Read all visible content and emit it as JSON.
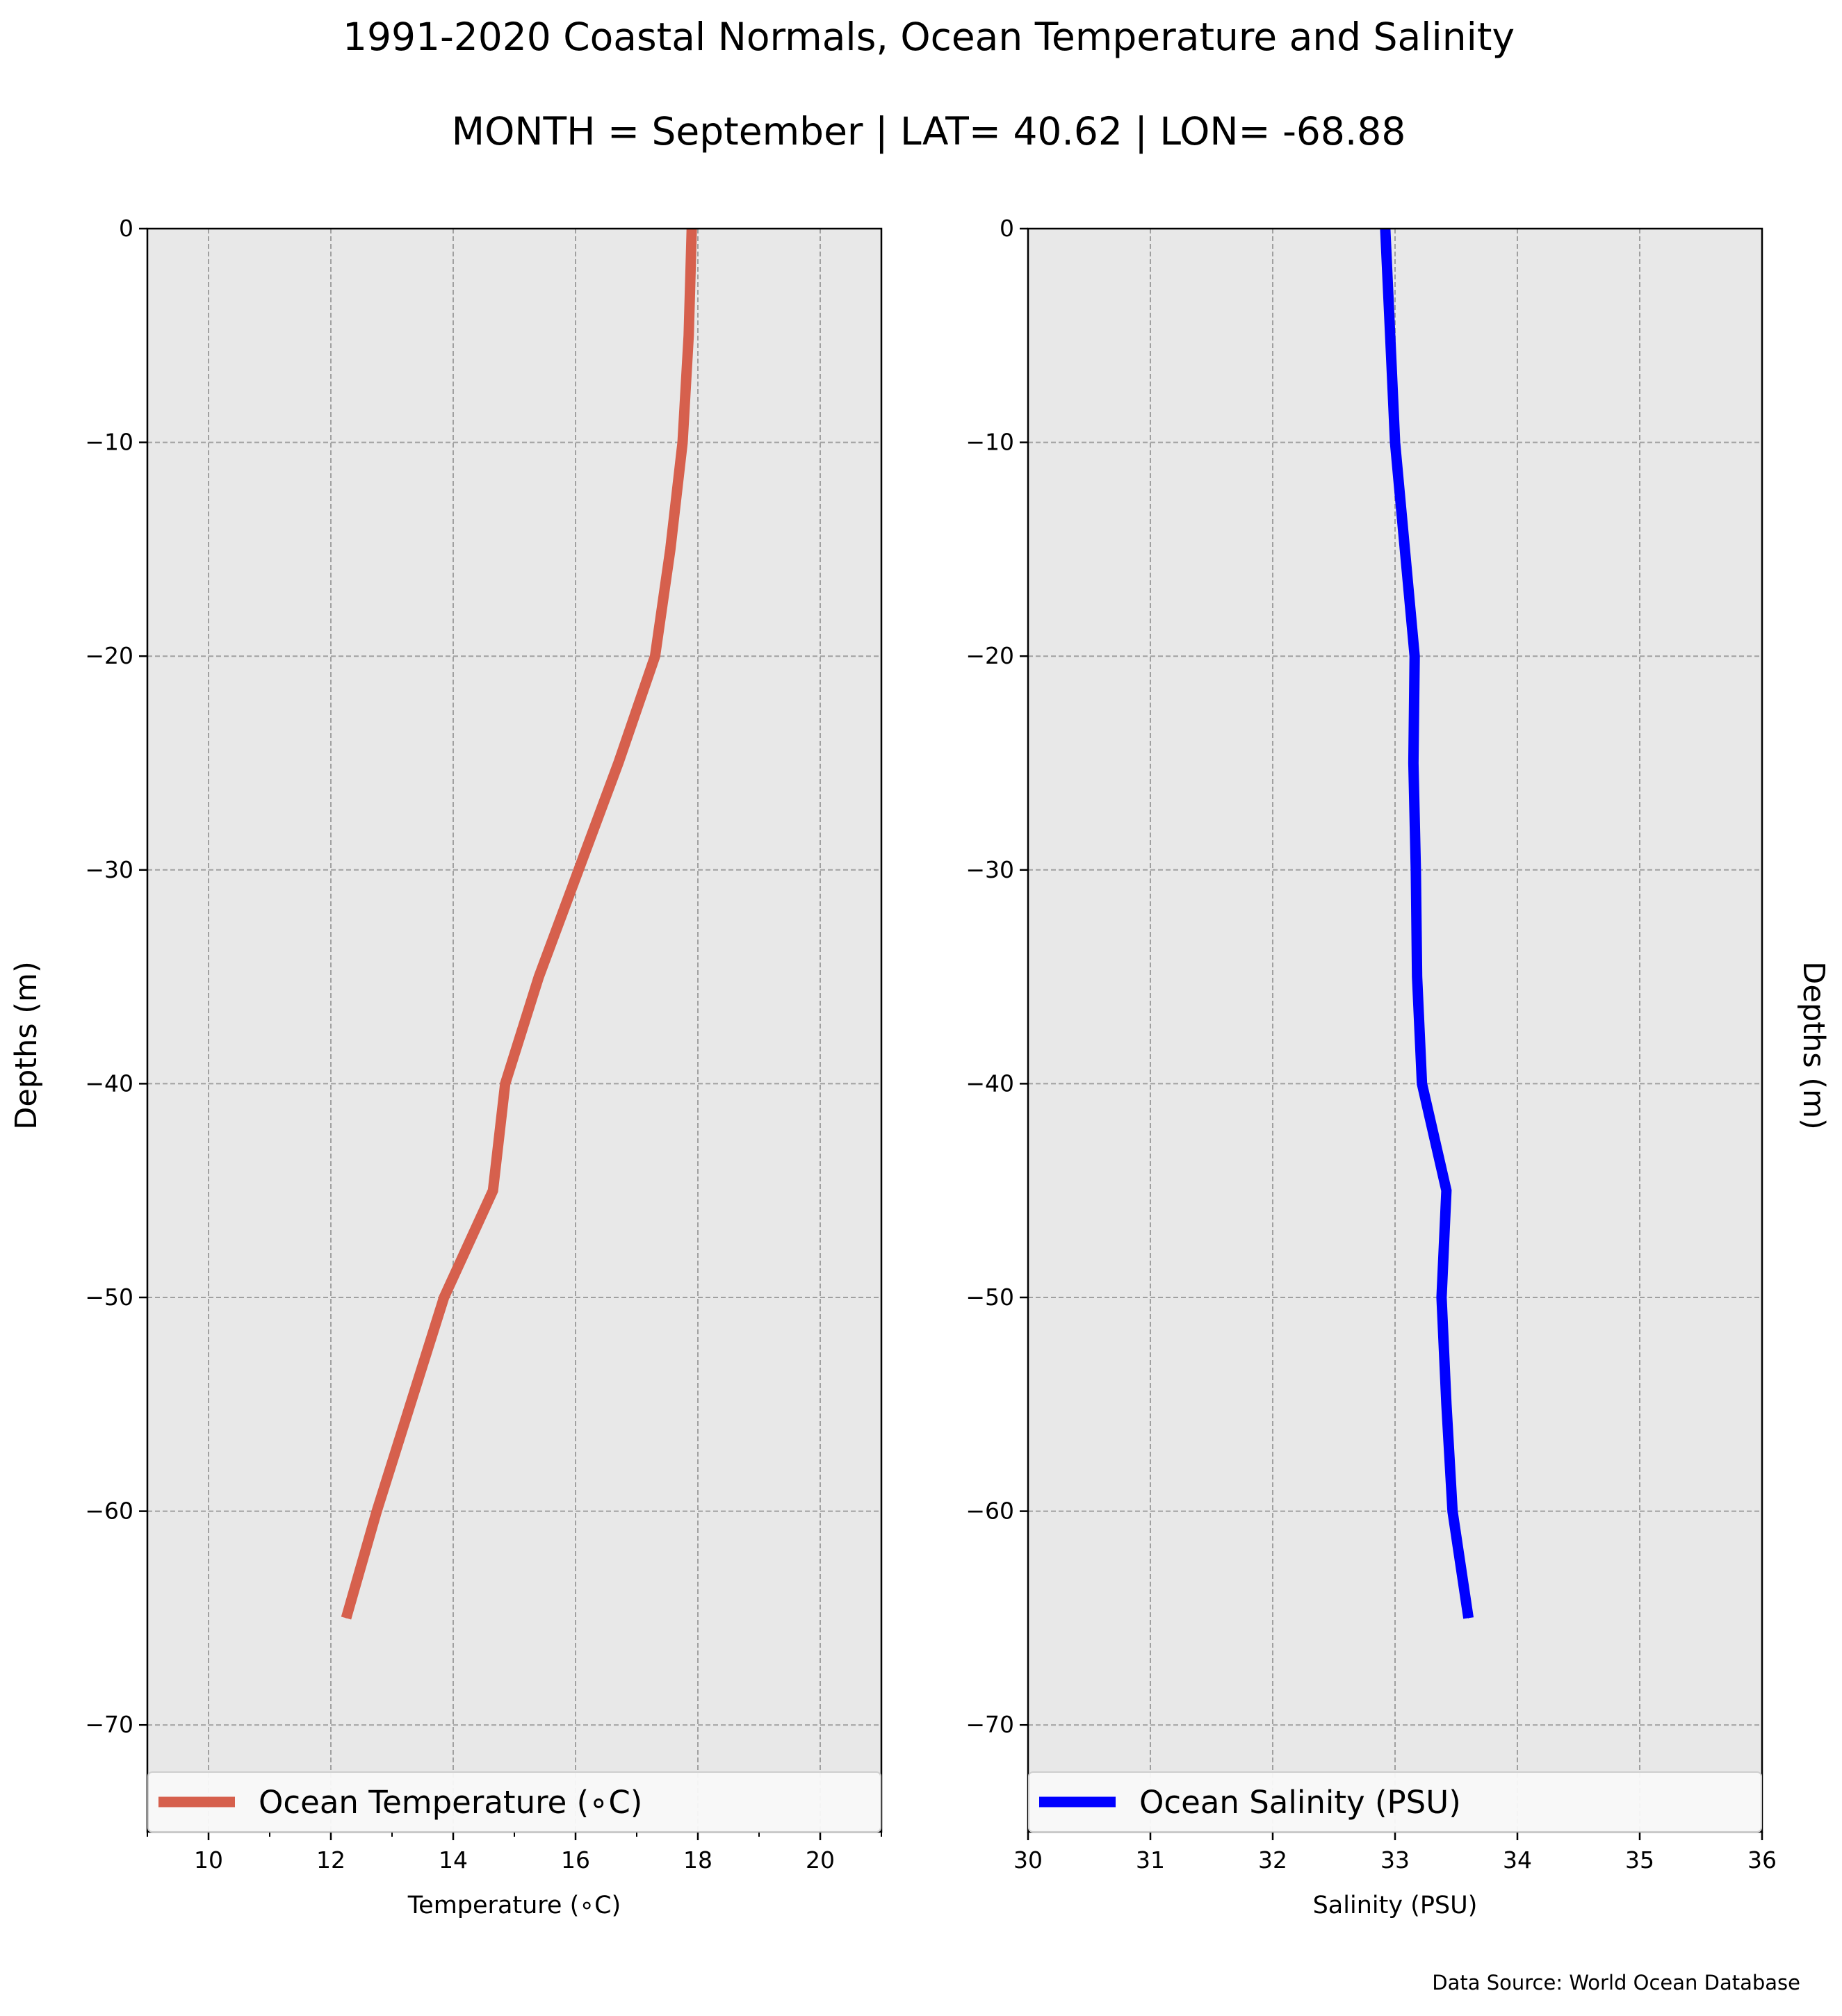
{
  "title": "1991-2020 Coastal Normals, Ocean Temperature and Salinity",
  "subtitle": "MONTH = September | LAT= 40.62 | LON= -68.88",
  "source_note": "Data Source: World Ocean Database",
  "colors": {
    "temperature": "#d6604d",
    "salinity": "#0000ff",
    "axes_bg": "#e8e8e8",
    "grid": "#a0a0a0"
  },
  "chart_data": [
    {
      "type": "line",
      "xlabel": "Temperature ($^\\circ$C)",
      "xlabel_display": "Temperature (∘C)",
      "ylabel": "Depths (m)",
      "ylabel_side": "left",
      "xlim": [
        9,
        21
      ],
      "ylim": [
        -75,
        0
      ],
      "xticks": [
        10,
        12,
        14,
        16,
        18,
        20
      ],
      "xticks_minor": [
        9,
        11,
        13,
        15,
        17,
        19,
        21
      ],
      "yticks": [
        0,
        -10,
        -20,
        -30,
        -40,
        -50,
        -60,
        -70
      ],
      "ytick_labels": [
        "0",
        "−10",
        "−20",
        "−30",
        "−40",
        "−50",
        "−60",
        "−70"
      ],
      "xtick_labels": [
        "10",
        "12",
        "14",
        "16",
        "18",
        "20"
      ],
      "grid": true,
      "legend_position": "lower center",
      "series": [
        {
          "name": "Ocean Temperature (∘C)",
          "color": "#d6604d",
          "x": [
            17.9,
            17.85,
            17.75,
            17.55,
            17.3,
            16.7,
            16.05,
            15.4,
            14.85,
            14.65,
            13.85,
            13.3,
            12.75,
            12.25
          ],
          "y": [
            0,
            -5,
            -10,
            -15,
            -20,
            -25,
            -30,
            -35,
            -40,
            -45,
            -50,
            -55,
            -60,
            -65
          ]
        }
      ]
    },
    {
      "type": "line",
      "xlabel": "Salinity (PSU)",
      "ylabel": "Depths (m)",
      "ylabel_side": "right",
      "xlim": [
        30,
        36
      ],
      "ylim": [
        -75,
        0
      ],
      "xticks": [
        30,
        31,
        32,
        33,
        34,
        35,
        36
      ],
      "xtick_labels": [
        "30",
        "31",
        "32",
        "33",
        "34",
        "35",
        "36"
      ],
      "yticks": [
        0,
        -10,
        -20,
        -30,
        -40,
        -50,
        -60,
        -70
      ],
      "ytick_labels": [
        "0",
        "−10",
        "−20",
        "−30",
        "−40",
        "−50",
        "−60",
        "−70"
      ],
      "grid": true,
      "legend_position": "lower center",
      "series": [
        {
          "name": "Ocean Salinity (PSU)",
          "color": "#0000ff",
          "x": [
            32.92,
            32.96,
            33.0,
            33.08,
            33.16,
            33.15,
            33.17,
            33.18,
            33.22,
            33.42,
            33.38,
            33.42,
            33.47,
            33.6
          ],
          "y": [
            0,
            -5,
            -10,
            -15,
            -20,
            -25,
            -30,
            -35,
            -40,
            -45,
            -50,
            -55,
            -60,
            -65
          ]
        }
      ]
    }
  ]
}
